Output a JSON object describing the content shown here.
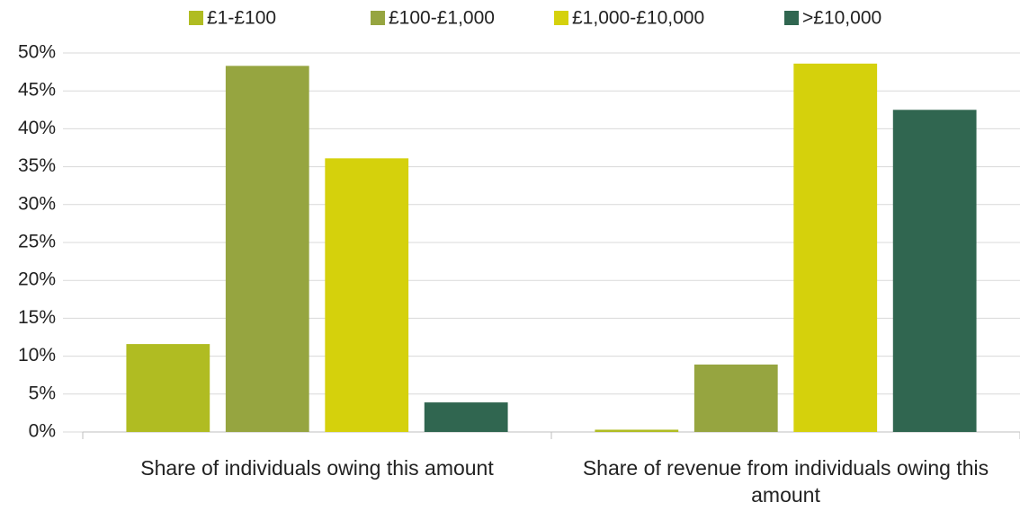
{
  "chart_data": {
    "type": "bar",
    "categories": [
      "Share of individuals owing this amount",
      "Share of revenue from individuals owing this amount"
    ],
    "series": [
      {
        "name": "£1-£100",
        "color": "#b0bc22",
        "values": [
          11.6,
          0.3
        ]
      },
      {
        "name": "£100-£1,000",
        "color": "#96a540",
        "values": [
          48.3,
          8.9
        ]
      },
      {
        "name": "£1,000-£10,000",
        "color": "#d5d10c",
        "values": [
          36.1,
          48.6
        ]
      },
      {
        "name": ">£10,000",
        "color": "#306650",
        "values": [
          3.9,
          42.5
        ]
      }
    ],
    "ylim": [
      0,
      50
    ],
    "yticks": [
      {
        "value": 0,
        "label": "0%"
      },
      {
        "value": 5,
        "label": "5%"
      },
      {
        "value": 10,
        "label": "10%"
      },
      {
        "value": 15,
        "label": "15%"
      },
      {
        "value": 20,
        "label": "20%"
      },
      {
        "value": 25,
        "label": "25%"
      },
      {
        "value": 30,
        "label": "30%"
      },
      {
        "value": 35,
        "label": "35%"
      },
      {
        "value": 40,
        "label": "40%"
      },
      {
        "value": 45,
        "label": "45%"
      },
      {
        "value": 50,
        "label": "50%"
      }
    ],
    "grid": true,
    "legend": "top"
  }
}
